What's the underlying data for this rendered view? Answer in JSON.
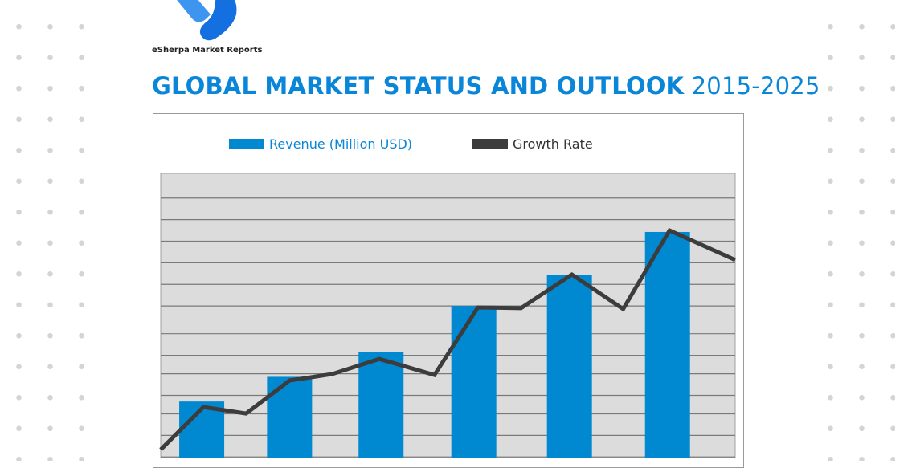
{
  "brand": {
    "name": "eSherpa Market Reports",
    "logo_color": "#1a7fe8"
  },
  "header": {
    "title_bold": "GLOBAL MARKET STATUS AND OUTLOOK",
    "title_years": "2015-2025"
  },
  "colors": {
    "accent": "#0a86d8",
    "bar": "#0089d1",
    "line": "#3c3c3c",
    "plot_bg": "#dcdcdc",
    "grid": "#7a7a7a"
  },
  "chart_data": {
    "type": "bar",
    "title": "GLOBAL MARKET STATUS AND OUTLOOK 2015-2025",
    "xlabel": "",
    "ylabel": "",
    "note": "No axis tick labels shown; values in relative units (0-100 scale of plot height)",
    "ylim": [
      0,
      100
    ],
    "xlim": [
      0,
      14
    ],
    "grid": true,
    "legend": {
      "position": "top",
      "entries": [
        "Revenue (Million USD)",
        "Growth Rate"
      ]
    },
    "series": [
      {
        "name": "Revenue (Million USD)",
        "type": "bar",
        "x": [
          1.0,
          3.14,
          5.37,
          7.63,
          9.96,
          12.35
        ],
        "values": [
          26,
          34,
          42,
          57,
          67,
          81
        ]
      },
      {
        "name": "Growth Rate",
        "type": "line",
        "x": [
          0,
          1.04,
          2.08,
          3.14,
          4.18,
          5.33,
          6.67,
          7.73,
          8.78,
          10.02,
          11.27,
          12.4,
          14.0
        ],
        "values": [
          10.4,
          24.2,
          22.1,
          32.8,
          34.9,
          39.8,
          34.6,
          56.5,
          56.3,
          67.2,
          56.0,
          81.5,
          71.9
        ]
      }
    ],
    "gridlines": [
      8,
      15,
      22,
      28,
      35,
      41,
      48,
      57,
      64,
      71,
      78,
      85,
      92
    ]
  }
}
